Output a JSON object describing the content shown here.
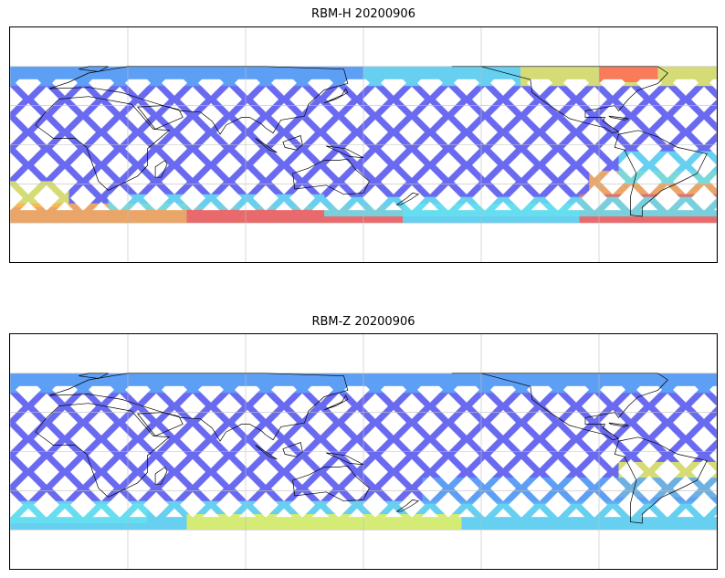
{
  "panels": [
    {
      "title": "RBM-H 20200906",
      "scheme": "high"
    },
    {
      "title": "RBM-Z 20200906",
      "scheme": "low"
    }
  ],
  "map": {
    "projection": "plate-carree",
    "central_longitude": 150,
    "lat_range": [
      -90,
      90
    ],
    "lon_range": [
      -30,
      330
    ],
    "gridlines": true,
    "grid_lon_step": 60,
    "grid_lat_step": 30,
    "coastlines": true,
    "data_lat_extent": [
      -60,
      60
    ]
  },
  "colors": {
    "swath_base": "#6a6af0",
    "swath_light": "#5aa8f5",
    "cyan": "#66e0f0",
    "yellow": "#e8f060",
    "orange": "#ffb050",
    "red": "#ff6a55",
    "coastline": "#000000",
    "grid": "#bfbfbf"
  }
}
